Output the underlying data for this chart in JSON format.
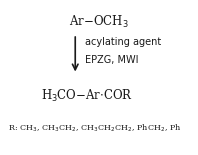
{
  "background_color": "#ffffff",
  "text_color": "#1a1a1a",
  "figsize": [
    1.98,
    1.55
  ],
  "dpi": 100
}
